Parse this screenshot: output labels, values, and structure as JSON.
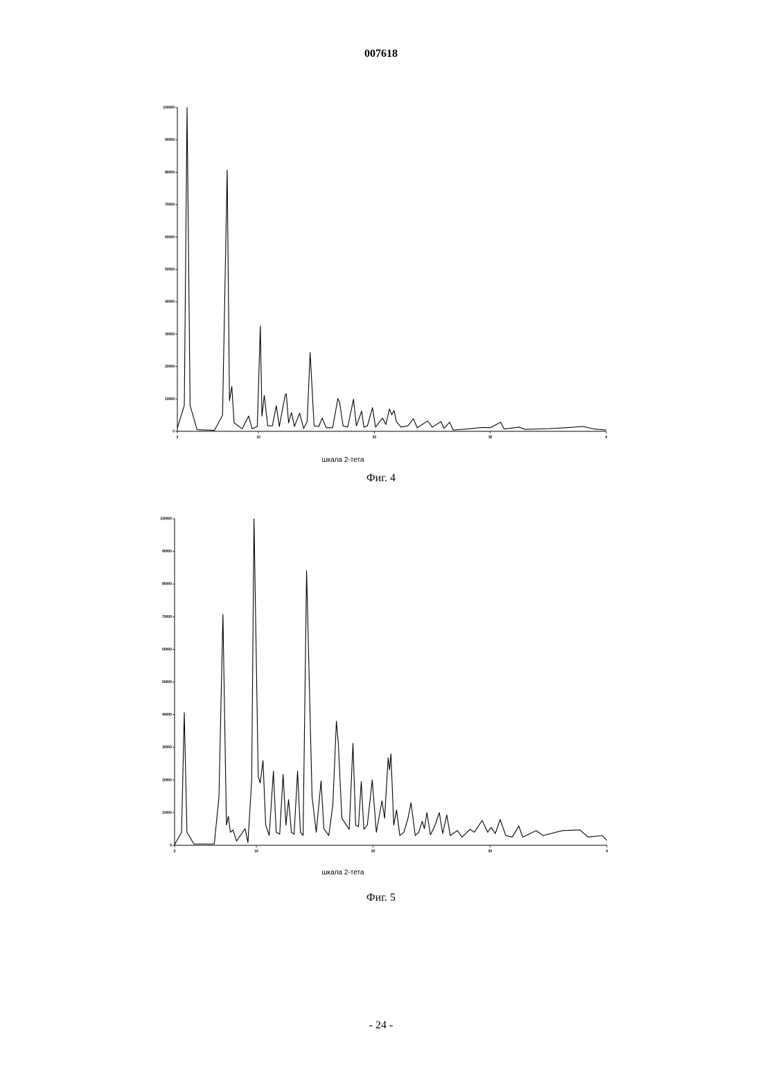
{
  "header": {
    "title": "007618"
  },
  "chart_data": [
    {
      "type": "line",
      "x_label": "шкала 2-тета",
      "caption": "Фиг. 4",
      "color": "#000000",
      "xlim": [
        3,
        40
      ],
      "ylim": [
        0,
        100000
      ],
      "xticks": [
        3,
        10,
        20,
        30,
        {
          "value": 40,
          "label": "4"
        }
      ],
      "yticks": [
        0,
        10000,
        20000,
        30000,
        40000,
        50000,
        60000,
        70000,
        80000,
        90000,
        100000
      ],
      "x": [
        3,
        3.6,
        3.84,
        4.1,
        4.7,
        6.2,
        6.9,
        7.3,
        7.5,
        7.7,
        7.9,
        8.6,
        9.15,
        9.45,
        9.9,
        10.16,
        10.3,
        10.5,
        10.8,
        11.2,
        11.54,
        11.8,
        12.3,
        12.4,
        12.6,
        12.85,
        13.1,
        13.55,
        13.9,
        14.2,
        14.46,
        14.8,
        15.2,
        15.5,
        15.85,
        16.4,
        16.85,
        17.0,
        17.3,
        17.7,
        18.2,
        18.45,
        18.9,
        19.1,
        19.4,
        19.84,
        20.1,
        20.7,
        21.0,
        21.3,
        21.5,
        21.7,
        21.9,
        22.3,
        22.9,
        23.36,
        23.7,
        24.25,
        24.6,
        25.0,
        25.75,
        26.0,
        26.5,
        26.8,
        28.0,
        29.3,
        30.0,
        30.9,
        31.2,
        32.5,
        33.0,
        35.0,
        36.5,
        38.0,
        39.0,
        40
      ],
      "values": [
        1000,
        8000,
        100000,
        8000,
        500,
        300,
        5000,
        80700,
        9400,
        13900,
        2600,
        800,
        4700,
        800,
        1500,
        32500,
        4700,
        11100,
        1700,
        1700,
        7900,
        1500,
        11100,
        11600,
        2600,
        5800,
        1500,
        5600,
        900,
        3000,
        24400,
        1700,
        1500,
        4100,
        1100,
        1100,
        10100,
        9000,
        1700,
        1300,
        9900,
        1700,
        6200,
        1300,
        1700,
        7300,
        1300,
        4100,
        2100,
        6900,
        5100,
        6400,
        3000,
        1300,
        1700,
        3900,
        1100,
        2400,
        3200,
        1300,
        3000,
        900,
        2800,
        400,
        700,
        1200,
        1100,
        2800,
        700,
        1300,
        600,
        800,
        1100,
        1500,
        700,
        400
      ]
    },
    {
      "type": "line",
      "x_label": "шкала 2-тета",
      "caption": "Фиг. 5",
      "color": "#000000",
      "xlim": [
        3,
        40
      ],
      "ylim": [
        0,
        100000
      ],
      "xticks": [
        3,
        10,
        20,
        30,
        {
          "value": 40,
          "label": "4"
        }
      ],
      "yticks": [
        0,
        10000,
        20000,
        30000,
        40000,
        50000,
        60000,
        70000,
        80000,
        90000,
        100000
      ],
      "x": [
        3,
        3.6,
        3.83,
        4.06,
        4.66,
        6.4,
        6.8,
        7.14,
        7.44,
        7.6,
        7.78,
        8.0,
        8.3,
        9.04,
        9.28,
        9.6,
        9.8,
        10.16,
        10.33,
        10.57,
        10.8,
        11.1,
        11.46,
        11.7,
        12.0,
        12.29,
        12.53,
        12.76,
        13.0,
        13.23,
        13.53,
        13.77,
        14.0,
        14.3,
        14.77,
        15.13,
        15.54,
        15.78,
        16.2,
        16.55,
        16.85,
        17.02,
        17.32,
        17.7,
        17.95,
        18.27,
        18.5,
        18.74,
        18.98,
        19.2,
        19.5,
        19.92,
        20.27,
        20.75,
        20.98,
        21.28,
        21.4,
        21.52,
        21.76,
        22.0,
        22.28,
        22.63,
        22.98,
        23.24,
        23.6,
        23.9,
        24.2,
        24.38,
        24.6,
        24.9,
        25.25,
        25.66,
        25.95,
        26.3,
        26.6,
        27.2,
        27.6,
        28.3,
        28.65,
        29.33,
        29.8,
        30.1,
        30.45,
        30.87,
        31.35,
        31.9,
        32.47,
        32.8,
        33.95,
        34.55,
        36.2,
        37.7,
        38.4,
        39.6,
        40
      ],
      "values": [
        200,
        4000,
        40600,
        4000,
        400,
        400,
        14800,
        70700,
        6200,
        8900,
        4000,
        4700,
        1300,
        5100,
        800,
        20000,
        100000,
        21000,
        19100,
        25900,
        6200,
        3000,
        22700,
        4000,
        3400,
        21700,
        6200,
        14000,
        4000,
        3400,
        22700,
        4000,
        3000,
        84100,
        14800,
        4000,
        19700,
        5100,
        3000,
        12500,
        38000,
        31000,
        8300,
        6200,
        4900,
        31200,
        6200,
        5700,
        19500,
        4900,
        6200,
        20000,
        4000,
        13600,
        8300,
        26800,
        23100,
        28000,
        6200,
        10800,
        3000,
        4000,
        8300,
        13000,
        3000,
        4000,
        7400,
        5100,
        10000,
        3200,
        5700,
        10000,
        3600,
        9300,
        3000,
        4500,
        2500,
        4900,
        4000,
        7600,
        4000,
        5500,
        3600,
        7900,
        3000,
        2500,
        5900,
        2500,
        4500,
        3000,
        4500,
        4700,
        2500,
        3000,
        1500
      ]
    }
  ],
  "footer": {
    "page": "- 24 -"
  }
}
